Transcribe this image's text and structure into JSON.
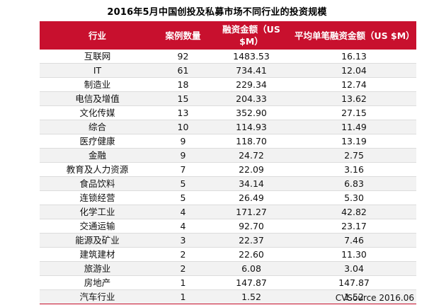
{
  "title": "2016年5月中国创投及私募市场不同行业的投资规模",
  "headers": [
    "行业",
    "案例数量",
    "融资金额（US $M）",
    "平均单笔融资金额（US $M）"
  ],
  "rows": [
    [
      "互联网",
      "92",
      "1483.53",
      "16.13"
    ],
    [
      "IT",
      "61",
      "734.41",
      "12.04"
    ],
    [
      "制造业",
      "18",
      "229.34",
      "12.74"
    ],
    [
      "电信及增值",
      "15",
      "204.33",
      "13.62"
    ],
    [
      "文化传媒",
      "13",
      "352.90",
      "27.15"
    ],
    [
      "综合",
      "10",
      "114.93",
      "11.49"
    ],
    [
      "医疗健康",
      "9",
      "118.70",
      "13.19"
    ],
    [
      "金融",
      "9",
      "24.72",
      "2.75"
    ],
    [
      "教育及人力资源",
      "7",
      "22.09",
      "3.16"
    ],
    [
      "食品饮料",
      "5",
      "34.14",
      "6.83"
    ],
    [
      "连锁经营",
      "5",
      "26.49",
      "5.30"
    ],
    [
      "化学工业",
      "4",
      "171.27",
      "42.82"
    ],
    [
      "交通运输",
      "4",
      "92.70",
      "23.17"
    ],
    [
      "能源及矿业",
      "3",
      "22.37",
      "7.46"
    ],
    [
      "建筑建材",
      "2",
      "22.60",
      "11.30"
    ],
    [
      "旅游业",
      "2",
      "6.08",
      "3.04"
    ],
    [
      "房地产",
      "1",
      "147.87",
      "147.87"
    ],
    [
      "汽车行业",
      "1",
      "1.52",
      "1.52"
    ]
  ],
  "source": "CVSource 2016.06",
  "colors": {
    "header_bg": "#c8102e",
    "stripe": "#f2f2f2"
  }
}
